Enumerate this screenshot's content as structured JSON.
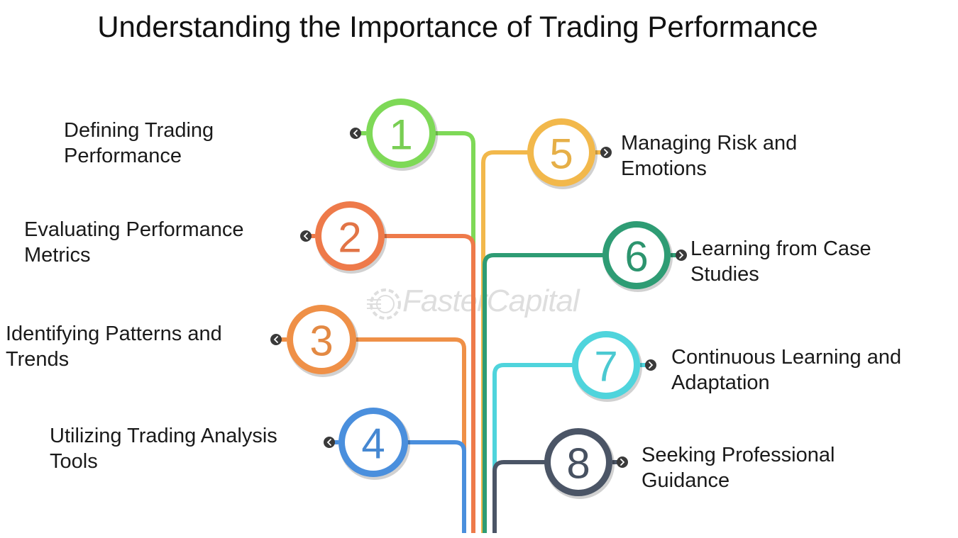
{
  "title": "Understanding the Importance of Trading Performance",
  "watermark": "FasterCapital",
  "steps": [
    {
      "number": "1",
      "label": "Defining Trading Performance",
      "color": "#7ed957"
    },
    {
      "number": "2",
      "label": "Evaluating Performance Metrics",
      "color": "#ee7a4a"
    },
    {
      "number": "3",
      "label": "Identifying Patterns and Trends",
      "color": "#ef9047"
    },
    {
      "number": "4",
      "label": "Utilizing Trading Analysis Tools",
      "color": "#4a8fdd"
    },
    {
      "number": "5",
      "label": "Managing Risk and Emotions",
      "color": "#f2b84b"
    },
    {
      "number": "6",
      "label": "Learning from Case Studies",
      "color": "#2e9c74"
    },
    {
      "number": "7",
      "label": "Continuous Learning and Adaptation",
      "color": "#4fd4dc"
    },
    {
      "number": "8",
      "label": "Seeking Professional Guidance",
      "color": "#4b5566"
    }
  ]
}
